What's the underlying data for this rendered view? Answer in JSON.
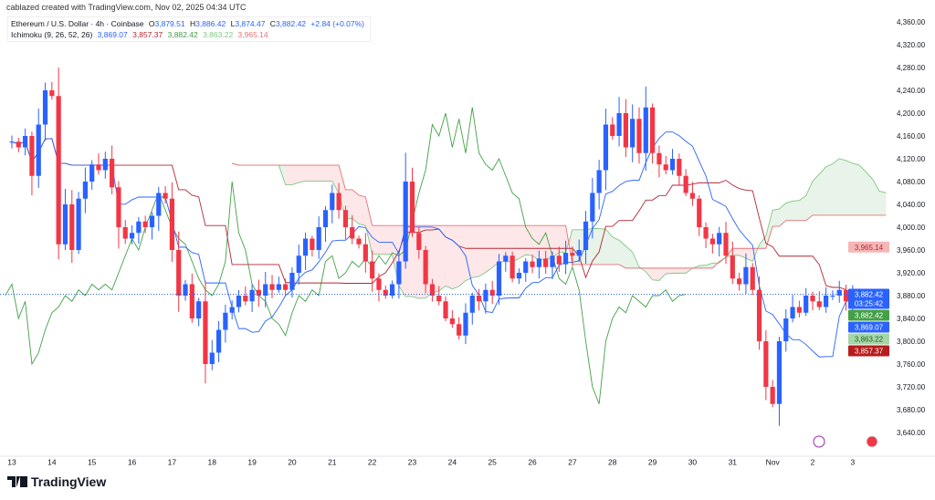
{
  "credit": "cablazed created with TradingView.com, Nov 02, 2025 04:34 UTC",
  "legend": {
    "symbol": "Ethereum / U.S. Dollar · 4h · Coinbase",
    "o_label": "O",
    "o": "3,879.51",
    "h_label": "H",
    "h": "3,886.42",
    "l_label": "L",
    "l": "3,874.47",
    "c_label": "C",
    "c": "3,882.42",
    "change": "+2.84 (+0.07%)",
    "ichimoku": "Ichimoku (9, 26, 52, 26)",
    "ichi_values": [
      "3,869.07",
      "3,857.37",
      "3,882.42",
      "3,863.22",
      "3,965.14"
    ]
  },
  "colors": {
    "up": "#2962ff",
    "down": "#f23645",
    "tenkan": "#2962ff",
    "kijun": "#b22833",
    "chikou": "#43a047",
    "spanA": "#81c784",
    "spanB": "#e57373"
  },
  "price_tags": [
    {
      "text": "3,965.14",
      "price": 3965.14,
      "bg": "#f7b6b6",
      "fg": "#b22833"
    },
    {
      "text": "3,882.42",
      "price": 3882.42,
      "bg": "#2962ff",
      "fg": "#fff",
      "sub": "03:25:42"
    },
    {
      "text": "3,882.42",
      "price": 3882.42,
      "bg": "#43a047",
      "fg": "#fff"
    },
    {
      "text": "3,869.07",
      "price": 3869.07,
      "bg": "#2962ff",
      "fg": "#fff"
    },
    {
      "text": "3,863.22",
      "price": 3863.22,
      "bg": "#a5d6a7",
      "fg": "#1b5e20"
    },
    {
      "text": "3,857.37",
      "price": 3857.37,
      "bg": "#b71c1c",
      "fg": "#fff"
    }
  ],
  "chart_data": {
    "type": "candlestick",
    "title": "Ethereum / U.S. Dollar · 4h · Coinbase",
    "ylim": [
      3640,
      4360
    ],
    "yticks": [
      4360,
      4320,
      4280,
      4240,
      4200,
      4160,
      4120,
      4080,
      4040,
      4000,
      3960,
      3920,
      3880,
      3840,
      3800,
      3760,
      3720,
      3680,
      3640
    ],
    "ytick_labels": [
      "4,360.00",
      "4,320.00",
      "4,280.00",
      "4,240.00",
      "4,200.00",
      "4,160.00",
      "4,120.00",
      "4,080.00",
      "4,040.00",
      "4,000.00",
      "3,960.00",
      "3,920.00",
      "3,880.00",
      "3,840.00",
      "3,800.00",
      "3,760.00",
      "3,720.00",
      "3,680.00",
      "3,640.00"
    ],
    "xticks": [
      "13",
      "14",
      "15",
      "16",
      "17",
      "18",
      "19",
      "20",
      "21",
      "22",
      "23",
      "24",
      "25",
      "26",
      "27",
      "28",
      "29",
      "30",
      "31",
      "Nov",
      "2",
      "3"
    ],
    "candles_per_day": 6,
    "first_close": 4150,
    "closes": [
      4150,
      4140,
      4160,
      4090,
      4180,
      4240,
      4230,
      3970,
      4040,
      3960,
      4050,
      4080,
      4110,
      4100,
      4120,
      4070,
      4000,
      3980,
      3990,
      4010,
      4000,
      4020,
      4060,
      4050,
      3960,
      3880,
      3900,
      3840,
      3870,
      3760,
      3780,
      3820,
      3850,
      3860,
      3880,
      3870,
      3890,
      3880,
      3900,
      3890,
      3900,
      3890,
      3920,
      3950,
      3980,
      3960,
      4000,
      4030,
      4060,
      4030,
      4000,
      3980,
      3970,
      3940,
      3910,
      3890,
      3880,
      3900,
      3940,
      4080,
      3990,
      3960,
      3900,
      3880,
      3870,
      3840,
      3830,
      3810,
      3850,
      3880,
      3870,
      3890,
      3880,
      3940,
      3950,
      3910,
      3920,
      3940,
      3930,
      3945,
      3930,
      3950,
      3935,
      3955,
      3950,
      3960,
      4010,
      4060,
      4100,
      4180,
      4160,
      4200,
      4140,
      4190,
      4130,
      4210,
      4130,
      4110,
      4100,
      4120,
      4090,
      4060,
      4050,
      4000,
      3980,
      3970,
      3990,
      3950,
      3910,
      3900,
      3930,
      3890,
      3800,
      3720,
      3690,
      3800,
      3840,
      3860,
      3850,
      3880,
      3870,
      3860,
      3880,
      3880,
      3890,
      3870,
      3880,
      3882.42
    ],
    "last_price": 3882.42,
    "ichimoku": {
      "tenkan": 9,
      "kijun": 26,
      "senkou_b": 52,
      "displacement": 26
    }
  },
  "logo": "TradingView"
}
